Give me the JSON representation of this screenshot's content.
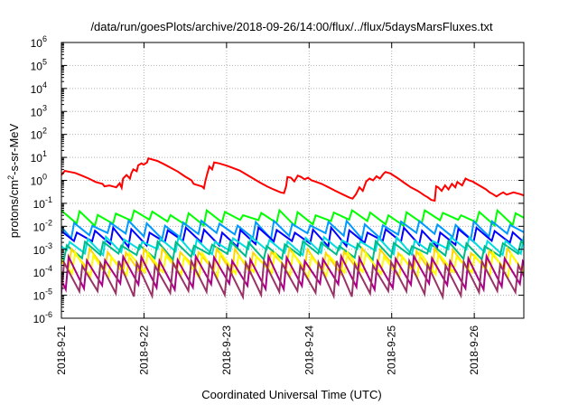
{
  "chart_data": {
    "type": "line",
    "title": "/data/run/goesPlots/archive/2018-09-26/14:00/flux/../flux/5daysMarsFluxes.txt",
    "xlabel": "Coordinated Universal Time (UTC)",
    "ylabel": {
      "prefix": "protons/cm",
      "sup": "2",
      "suffix": "-s-sr-MeV"
    },
    "x_ticks": [
      "2018-9-21",
      "2018-9-22",
      "2018-9-23",
      "2018-9-24",
      "2018-9-25",
      "2018-9-26"
    ],
    "x_range_days": [
      0,
      5.6
    ],
    "y_scale": "log",
    "ylim": [
      1e-06,
      1000000.0
    ],
    "y_ticks": [
      {
        "base": "10",
        "exp": "6"
      },
      {
        "base": "10",
        "exp": "5"
      },
      {
        "base": "10",
        "exp": "4"
      },
      {
        "base": "10",
        "exp": "3"
      },
      {
        "base": "10",
        "exp": "2"
      },
      {
        "base": "10",
        "exp": "1"
      },
      {
        "base": "10",
        "exp": "0"
      },
      {
        "base": "10",
        "exp": "-1"
      },
      {
        "base": "10",
        "exp": "-2"
      },
      {
        "base": "10",
        "exp": "-3"
      },
      {
        "base": "10",
        "exp": "-4"
      },
      {
        "base": "10",
        "exp": "-5"
      },
      {
        "base": "10",
        "exp": "-6"
      }
    ],
    "grid": true,
    "series": [
      {
        "color": "#ff0000",
        "style": "points",
        "points": [
          [
            0.0,
            1.7
          ],
          [
            0.05,
            2.6
          ],
          [
            0.1,
            2.4
          ],
          [
            0.2,
            2.1
          ],
          [
            0.3,
            1.6
          ],
          [
            0.4,
            1.2
          ],
          [
            0.5,
            0.85
          ],
          [
            0.6,
            0.7
          ],
          [
            0.63,
            0.55
          ],
          [
            0.7,
            0.6
          ],
          [
            0.8,
            0.5
          ],
          [
            0.85,
            0.75
          ],
          [
            0.88,
            0.48
          ],
          [
            0.9,
            1.2
          ],
          [
            0.95,
            1.7
          ],
          [
            1.0,
            1.2
          ],
          [
            1.02,
            2.0
          ],
          [
            1.05,
            3.0
          ],
          [
            1.1,
            2.5
          ],
          [
            1.12,
            4.5
          ],
          [
            1.17,
            5.5
          ],
          [
            1.2,
            4.8
          ],
          [
            1.25,
            6.0
          ],
          [
            1.27,
            9.0
          ],
          [
            1.4,
            7.0
          ],
          [
            1.5,
            5.0
          ],
          [
            1.6,
            3.5
          ],
          [
            1.7,
            2.4
          ],
          [
            1.8,
            1.5
          ],
          [
            1.9,
            1.0
          ],
          [
            1.93,
            0.7
          ],
          [
            2.0,
            0.6
          ],
          [
            2.05,
            0.55
          ],
          [
            2.08,
            0.45
          ],
          [
            2.1,
            0.9
          ],
          [
            2.13,
            2.0
          ],
          [
            2.16,
            4.0
          ],
          [
            2.2,
            3.0
          ],
          [
            2.23,
            6.0
          ],
          [
            2.3,
            5.5
          ],
          [
            2.4,
            4.5
          ],
          [
            2.5,
            3.5
          ],
          [
            2.6,
            2.7
          ],
          [
            2.7,
            1.8
          ],
          [
            2.8,
            1.2
          ],
          [
            2.9,
            0.8
          ],
          [
            3.0,
            0.55
          ],
          [
            3.1,
            0.4
          ],
          [
            3.2,
            0.3
          ],
          [
            3.25,
            0.28
          ],
          [
            3.28,
            0.55
          ],
          [
            3.3,
            1.4
          ],
          [
            3.35,
            1.3
          ],
          [
            3.4,
            0.9
          ],
          [
            3.45,
            1.6
          ],
          [
            3.5,
            1.4
          ],
          [
            3.55,
            1.1
          ],
          [
            3.6,
            1.3
          ],
          [
            3.65,
            1.0
          ],
          [
            3.7,
            0.9
          ],
          [
            3.8,
            0.7
          ],
          [
            3.9,
            0.5
          ],
          [
            4.0,
            0.35
          ],
          [
            4.1,
            0.25
          ],
          [
            4.2,
            0.18
          ],
          [
            4.25,
            0.16
          ],
          [
            4.3,
            0.25
          ],
          [
            4.35,
            0.5
          ],
          [
            4.4,
            0.35
          ],
          [
            4.45,
            0.9
          ],
          [
            4.5,
            1.2
          ],
          [
            4.55,
            1.0
          ],
          [
            4.6,
            1.5
          ],
          [
            4.65,
            1.2
          ],
          [
            4.7,
            1.9
          ],
          [
            4.73,
            2.3
          ],
          [
            4.8,
            2.0
          ],
          [
            4.9,
            1.3
          ],
          [
            5.0,
            0.8
          ],
          [
            5.1,
            0.5
          ],
          [
            5.2,
            0.35
          ],
          [
            5.25,
            0.28
          ],
          [
            5.3,
            0.22
          ],
          [
            5.35,
            0.18
          ],
          [
            5.4,
            0.14
          ],
          [
            5.45,
            0.13
          ],
          [
            5.47,
            0.55
          ],
          [
            5.5,
            0.5
          ],
          [
            5.55,
            0.35
          ],
          [
            5.6,
            0.6
          ],
          [
            5.65,
            0.4
          ],
          [
            5.7,
            0.7
          ],
          [
            5.75,
            0.5
          ],
          [
            5.78,
            0.85
          ],
          [
            5.85,
            0.6
          ],
          [
            5.9,
            1.2
          ],
          [
            5.95,
            1.0
          ],
          [
            6.0,
            0.9
          ],
          [
            6.1,
            0.6
          ],
          [
            6.2,
            0.4
          ],
          [
            6.25,
            0.3
          ],
          [
            6.3,
            0.25
          ],
          [
            6.35,
            0.2
          ],
          [
            6.4,
            0.25
          ],
          [
            6.45,
            0.3
          ],
          [
            6.5,
            0.24
          ],
          [
            6.6,
            0.3
          ],
          [
            6.7,
            0.25
          ],
          [
            6.75,
            0.22
          ]
        ]
      },
      {
        "color": "#00ff00",
        "style": "sawtooth",
        "high": 0.04,
        "low": 0.015,
        "phase": 0.0
      },
      {
        "color": "#0099ff",
        "style": "sawtooth",
        "high": 0.014,
        "low": 0.004,
        "phase": 0.3
      },
      {
        "color": "#0000ff",
        "style": "sawtooth",
        "high": 0.007,
        "low": 0.0018,
        "phase": 0.15
      },
      {
        "color": "#00dddd",
        "style": "sawtooth",
        "high": 0.0028,
        "low": 0.0008,
        "phase": 0.55
      },
      {
        "color": "#00bb88",
        "style": "sawtooth",
        "high": 0.0018,
        "low": 0.0005,
        "phase": 0.7
      },
      {
        "color": "#ffd700",
        "style": "sawtooth",
        "high": 0.0009,
        "low": 0.00012,
        "phase": 0.45
      },
      {
        "color": "#ffff00",
        "style": "sawtooth",
        "high": 0.0006,
        "low": 8e-05,
        "phase": 0.25
      },
      {
        "color": "#aa0088",
        "style": "sawtooth",
        "high": 0.0004,
        "low": 2.5e-05,
        "phase": 0.6
      },
      {
        "color": "#993366",
        "style": "sawtooth",
        "high": 0.00025,
        "low": 1.2e-05,
        "phase": 0.85
      }
    ]
  }
}
